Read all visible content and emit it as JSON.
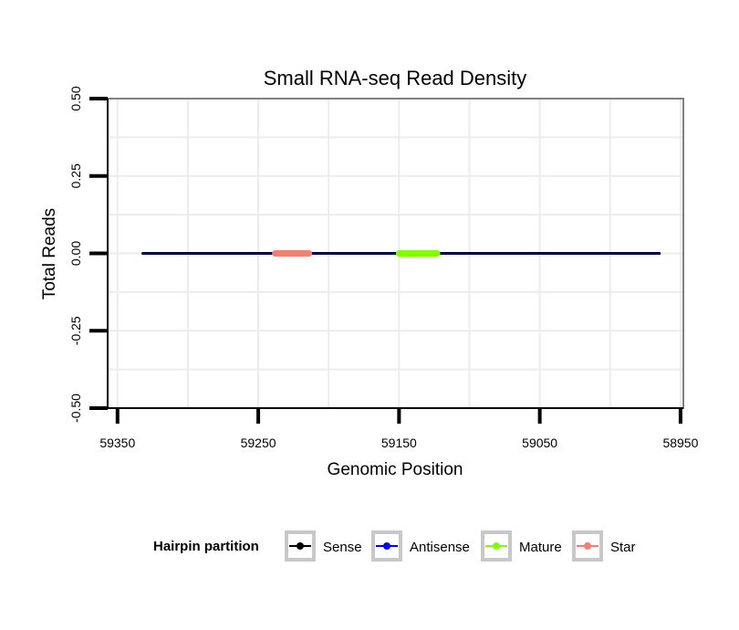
{
  "chart_data": {
    "type": "line",
    "title": "Small RNA-seq Read Density",
    "xlabel": "Genomic Position",
    "ylabel": "Total Reads",
    "x_reversed": true,
    "xlim": [
      59357,
      58948
    ],
    "ylim": [
      -0.5,
      0.5
    ],
    "x_ticks": [
      59350,
      59250,
      59150,
      59050,
      58950
    ],
    "x_tick_labels": [
      "59350",
      "59250",
      "59150",
      "59050",
      "58950"
    ],
    "y_ticks": [
      -0.5,
      -0.25,
      0,
      0.25,
      0.5
    ],
    "y_tick_labels": [
      "-0.50",
      "-0.25",
      "0.00",
      "0.25",
      "0.50"
    ],
    "grid": true,
    "legend": {
      "title": "Hairpin partition",
      "placement": "bottom",
      "entries": [
        "Sense",
        "Antisense",
        "Mature",
        "Star"
      ]
    },
    "series": [
      {
        "name": "Sense",
        "color": "#000000",
        "x": [
          59332,
          58965
        ],
        "y": [
          0,
          0
        ]
      },
      {
        "name": "Antisense",
        "color": "#0000ff",
        "x": [
          59332,
          58965
        ],
        "y": [
          0,
          0
        ]
      },
      {
        "name": "Mature",
        "color": "#80ff00",
        "x": [
          59150,
          59123
        ],
        "y": [
          0,
          0
        ]
      },
      {
        "name": "Star",
        "color": "#f08070",
        "x": [
          59238,
          59214
        ],
        "y": [
          0,
          0
        ]
      }
    ]
  }
}
